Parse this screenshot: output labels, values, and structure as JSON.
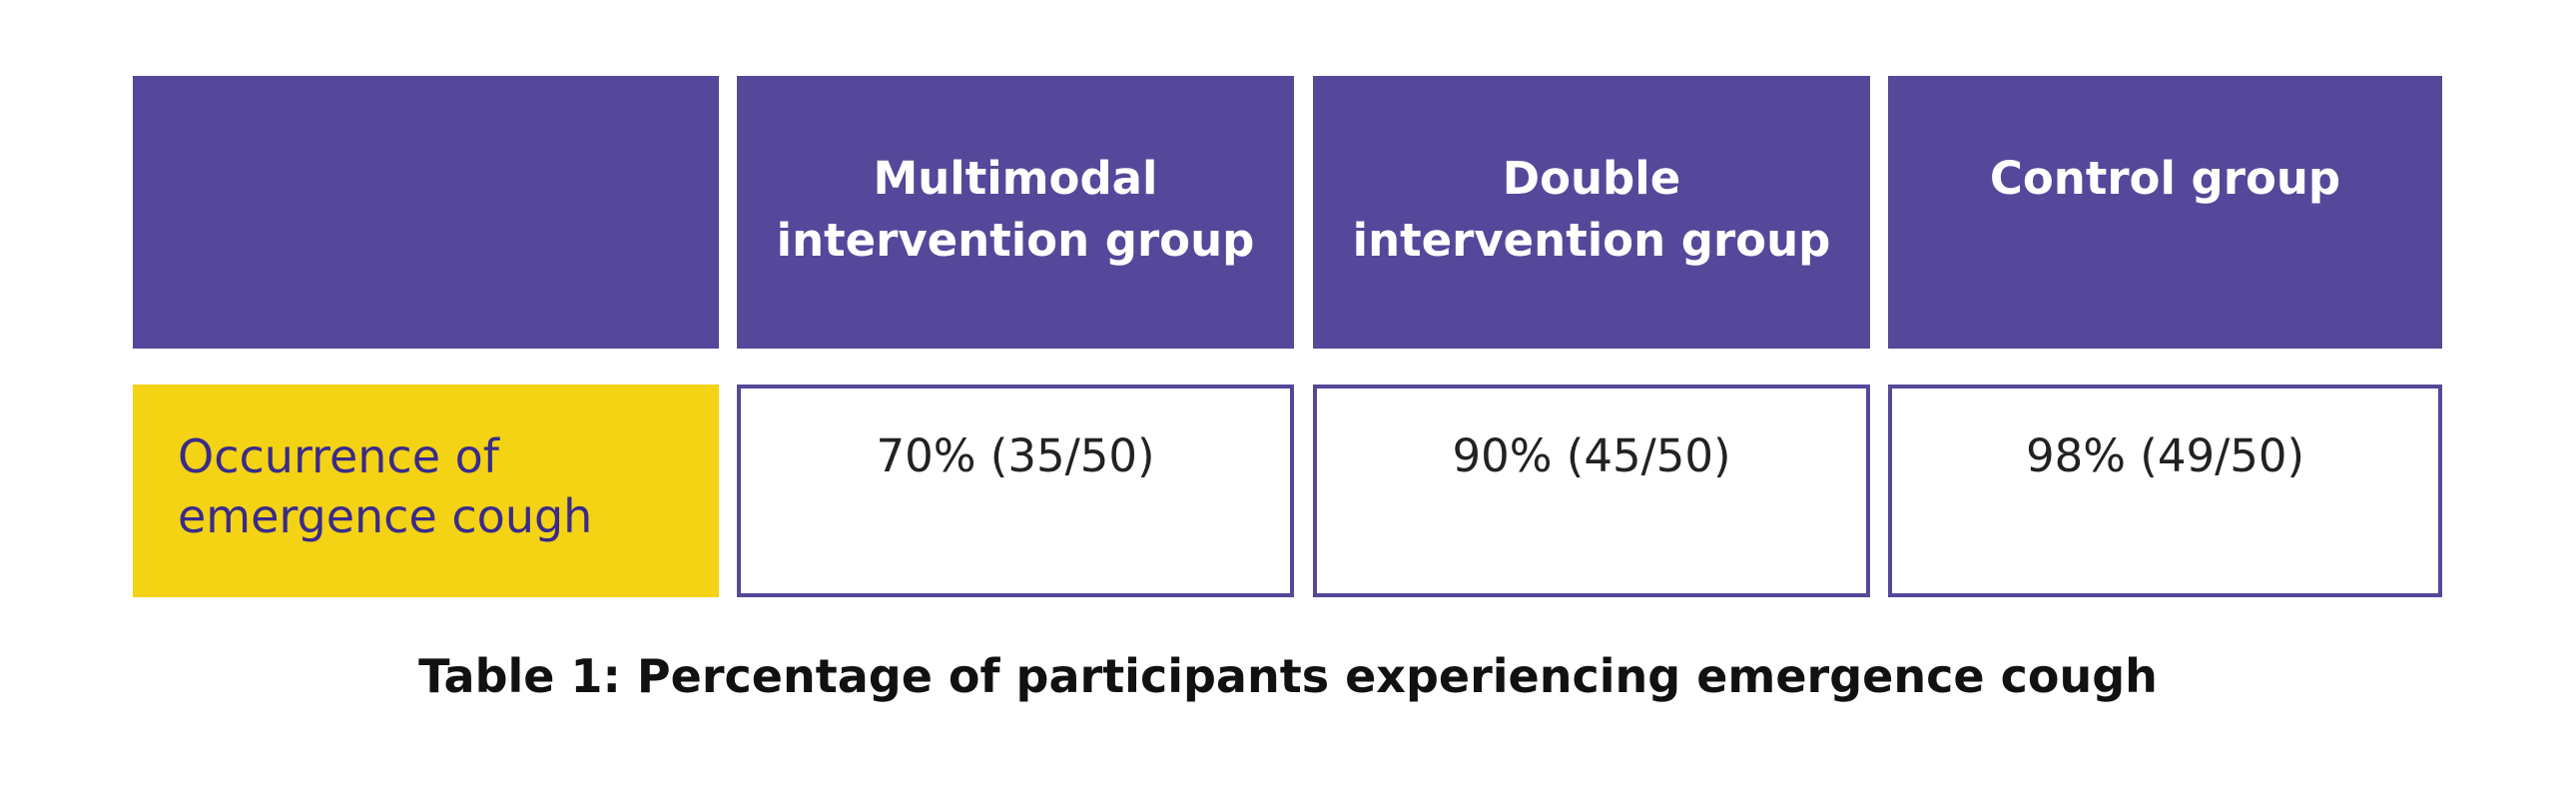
{
  "table": {
    "columns": [
      "",
      "Multimodal\nintervention group",
      "Double\nintervention group",
      "Control group"
    ],
    "rows": [
      {
        "label": "Occurrence of\nemergence cough",
        "values": [
          "70% (35/50)",
          "90% (45/50)",
          "98% (49/50)"
        ]
      }
    ]
  },
  "caption": "Table 1: Percentage of participants experiencing emergence cough",
  "colors": {
    "header": "#55489a",
    "row_label": "#f3d313",
    "border": "#55489a"
  }
}
